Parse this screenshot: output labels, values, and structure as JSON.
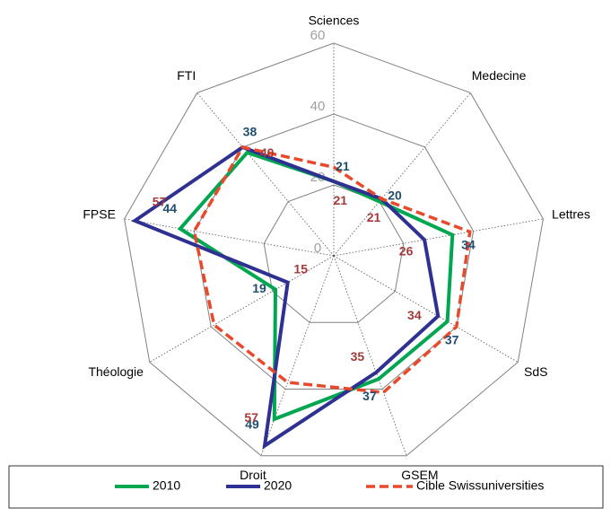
{
  "chart_data": {
    "type": "radar",
    "categories": [
      "Sciences",
      "Medecine",
      "Lettres",
      "SdS",
      "GSEM",
      "Droit",
      "Théologie",
      "FPSE",
      "FTI"
    ],
    "ylim": [
      0,
      60
    ],
    "yticks": [
      0,
      20,
      40,
      60
    ],
    "series": [
      {
        "name": "2010",
        "color": "#00a650",
        "values": [
          21,
          20,
          34,
          37,
          37,
          49,
          19,
          44,
          38
        ]
      },
      {
        "name": "2020",
        "color": "#2e3192",
        "values": [
          21,
          21,
          26,
          34,
          35,
          57,
          15,
          57,
          40
        ]
      },
      {
        "name": "Cible Swissuniversities",
        "color": "#e8492b",
        "dashed": true,
        "values": [
          25,
          21,
          39,
          40,
          41,
          38,
          39,
          40,
          40
        ]
      }
    ],
    "data_labels": [
      0,
      1
    ]
  }
}
